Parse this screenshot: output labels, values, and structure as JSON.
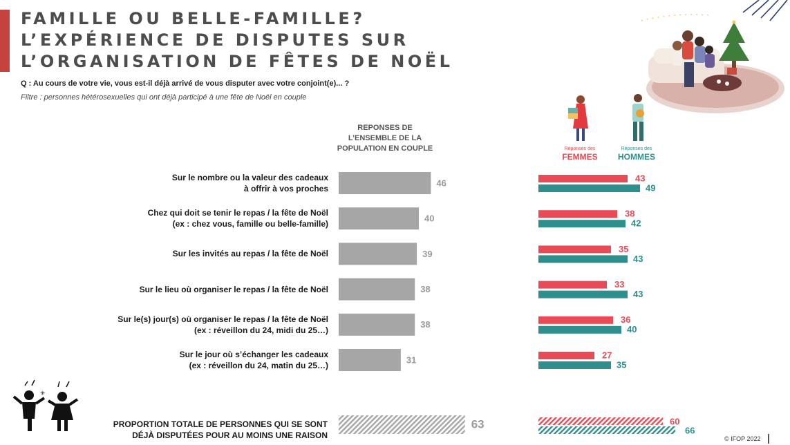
{
  "title": {
    "line1": "FAMILLE OU BELLE-FAMILLE?",
    "line2": "L’EXPÉRIENCE DE DISPUTES SUR",
    "line3": "L’ORGANISATION DE FÊTES DE NOËL"
  },
  "question": "Q : Au cours de votre vie, vous est-il déjà arrivé de vous disputer avec votre conjoint(e)... ?",
  "filter": "Filtre : personnes hétérosexuelles qui ont déjà participé à une fête de Noël en couple",
  "column_header": {
    "line1": "REPONSES DE",
    "line2": "L’ENSEMBLE DE LA",
    "line3": "POPULATION EN COUPLE"
  },
  "gender_headers": {
    "women_small": "Réponses des",
    "women_big": "FEMMES",
    "men_small": "Réponses des",
    "men_big": "HOMMES"
  },
  "colors": {
    "overall": "#a6a6a6",
    "women": "#e84b55",
    "men": "#2e8f8c",
    "title_accent": "#c8423d"
  },
  "chart_data": {
    "type": "bar",
    "categories": [
      [
        "Sur le nombre ou la valeur des cadeaux",
        "à offrir à vos proches"
      ],
      [
        "Chez qui doit se tenir le repas / la fête de Noël",
        "(ex : chez vous, famille ou belle-famille)"
      ],
      [
        "Sur les invités au repas / la fête de Noël"
      ],
      [
        "Sur le lieu où organiser le repas / la fête de Noël"
      ],
      [
        "Sur le(s) jour(s) où organiser le repas / la fête de Noël",
        "(ex : réveillon du 24, midi du 25…)"
      ],
      [
        "Sur le jour où s’échanger les cadeaux",
        "(ex : réveillon du 24, matin du 25…)"
      ]
    ],
    "series": [
      {
        "name": "REPONSES DE L’ENSEMBLE DE LA POPULATION EN COUPLE",
        "values": [
          46,
          40,
          39,
          38,
          38,
          31
        ]
      },
      {
        "name": "FEMMES",
        "values": [
          43,
          38,
          35,
          33,
          36,
          27
        ]
      },
      {
        "name": "HOMMES",
        "values": [
          49,
          42,
          43,
          43,
          40,
          35
        ]
      }
    ],
    "total": {
      "label": [
        "PROPORTION TOTALE DE PERSONNES QUI SE SONT",
        "DÉJÀ DISPUTÉES POUR AU MOINS UNE RAISON"
      ],
      "overall": 63,
      "women": 60,
      "men": 66
    },
    "unit": "%",
    "grid": false
  },
  "copyright": "© IFOP 2022"
}
